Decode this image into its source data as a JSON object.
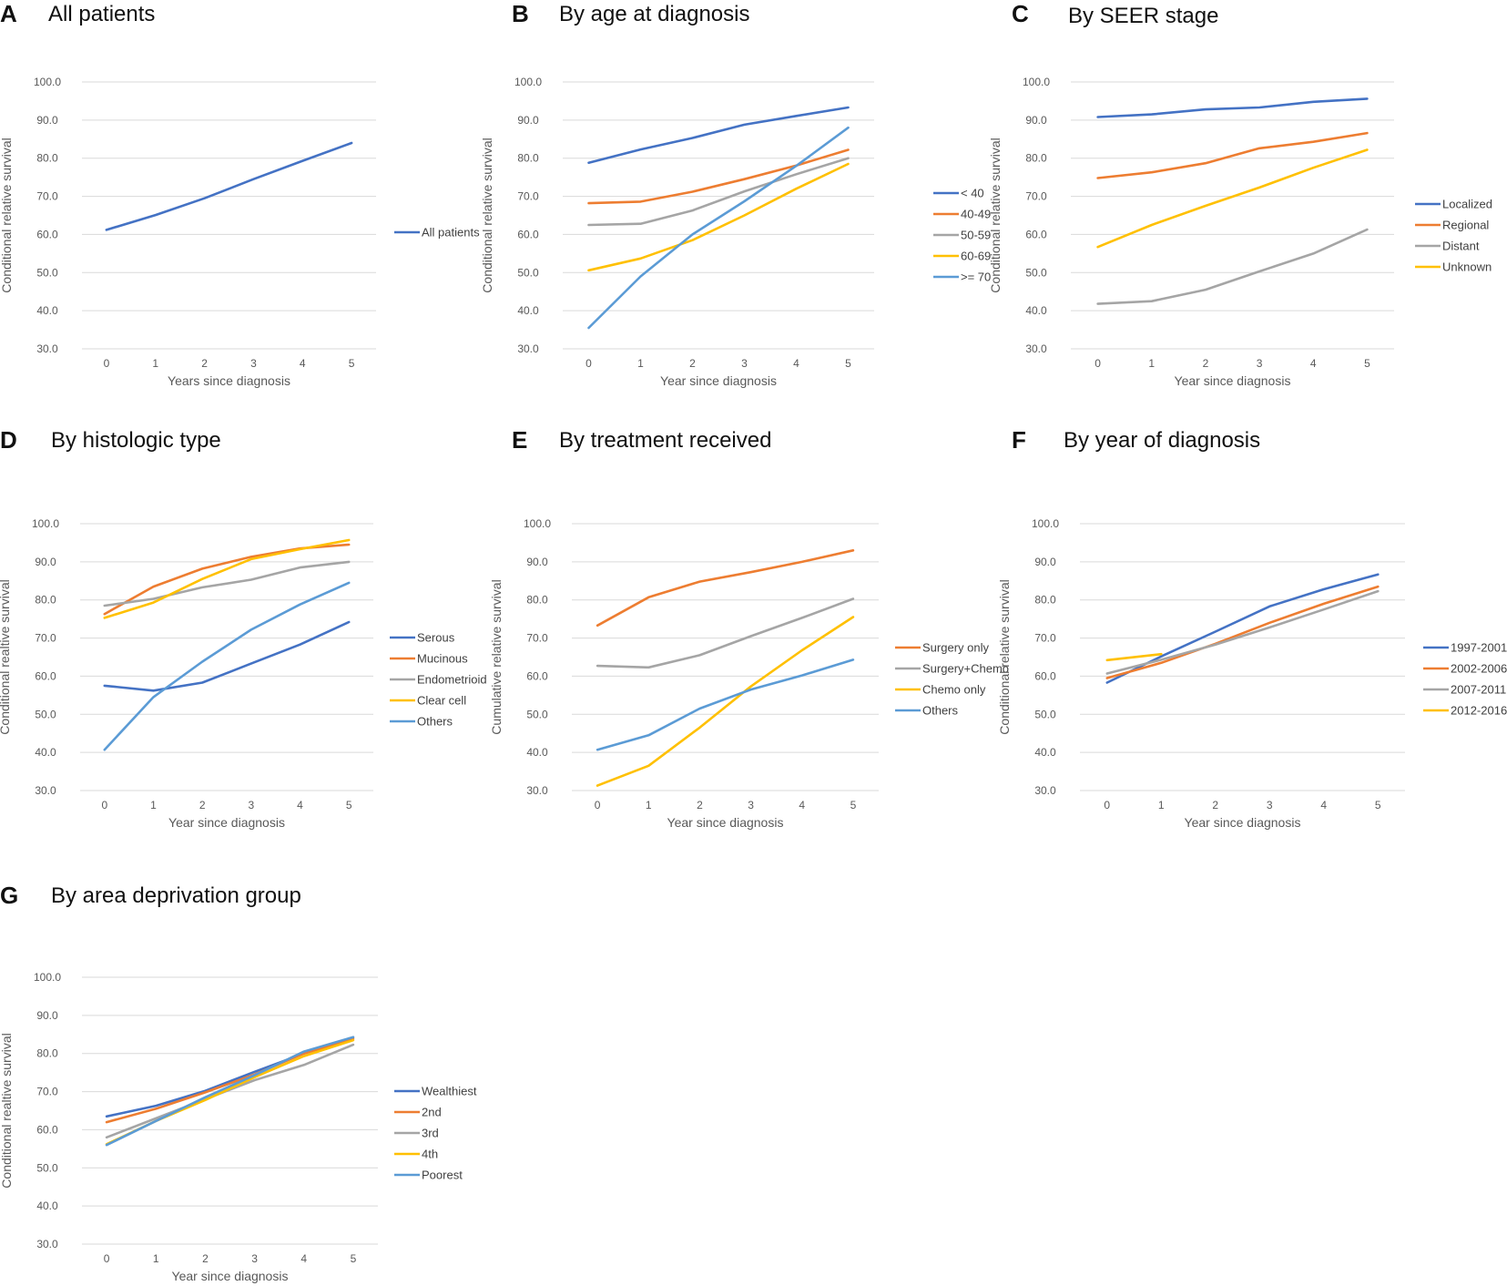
{
  "figure": {
    "background": "#ffffff"
  },
  "chart_data": [
    {
      "letter": "A",
      "title": "All patients",
      "type": "line",
      "xlabel": "Years since diagnosis",
      "ylabel": "Conditional relative survival",
      "x": [
        0,
        1,
        2,
        3,
        4,
        5
      ],
      "ylim": [
        30,
        100
      ],
      "yticks": [
        "100.0",
        "90.0",
        "80.0",
        "70.0",
        "60.0",
        "50.0",
        "40.0",
        "30.0"
      ],
      "series": [
        {
          "name": "All patients",
          "color": "#4472C4",
          "values": [
            61.2,
            65.1,
            69.5,
            74.5,
            79.3,
            84.0
          ]
        }
      ]
    },
    {
      "letter": "B",
      "title": "By age at diagnosis",
      "type": "line",
      "xlabel": "Year since diagnosis",
      "ylabel": "Conditional relative survival",
      "x": [
        0,
        1,
        2,
        3,
        4,
        5
      ],
      "ylim": [
        30,
        100
      ],
      "yticks": [
        "100.0",
        "90.0",
        "80.0",
        "70.0",
        "60.0",
        "50.0",
        "40.0",
        "30.0"
      ],
      "series": [
        {
          "name": "< 40",
          "color": "#4472C4",
          "values": [
            78.8,
            82.3,
            85.3,
            88.8,
            91.1,
            93.3
          ]
        },
        {
          "name": "40-49",
          "color": "#ED7D31",
          "values": [
            68.2,
            68.6,
            71.2,
            74.5,
            78.1,
            82.2
          ]
        },
        {
          "name": "50-59",
          "color": "#A5A5A5",
          "values": [
            62.5,
            62.8,
            66.3,
            71.3,
            75.8,
            80.0
          ]
        },
        {
          "name": "60-69",
          "color": "#FFC000",
          "values": [
            50.6,
            53.7,
            58.5,
            65.0,
            72.0,
            78.5
          ]
        },
        {
          "name": ">= 70",
          "color": "#5B9BD5",
          "values": [
            35.5,
            49.0,
            60.0,
            68.7,
            78.0,
            88.0
          ]
        }
      ]
    },
    {
      "letter": "C",
      "title": "By SEER stage",
      "type": "line",
      "xlabel": "Year since diagnosis",
      "ylabel": "Conditional relative survival",
      "x": [
        0,
        1,
        2,
        3,
        4,
        5
      ],
      "ylim": [
        30,
        100
      ],
      "yticks": [
        "100.0",
        "90.0",
        "80.0",
        "70.0",
        "60.0",
        "50.0",
        "40.0",
        "30.0"
      ],
      "series": [
        {
          "name": "Localized",
          "color": "#4472C4",
          "values": [
            90.8,
            91.5,
            92.8,
            93.3,
            94.8,
            95.6
          ]
        },
        {
          "name": "Regional",
          "color": "#ED7D31",
          "values": [
            74.8,
            76.3,
            78.7,
            82.6,
            84.3,
            86.6
          ]
        },
        {
          "name": "Distant",
          "color": "#A5A5A5",
          "values": [
            41.8,
            42.5,
            45.5,
            50.3,
            55.0,
            61.3
          ]
        },
        {
          "name": "Unknown",
          "color": "#FFC000",
          "values": [
            56.7,
            62.5,
            67.5,
            72.3,
            77.5,
            82.2
          ]
        }
      ]
    },
    {
      "letter": "D",
      "title": "By histologic type",
      "type": "line",
      "xlabel": "Year since diagnosis",
      "ylabel": "Conditional realtive survival",
      "x": [
        0,
        1,
        2,
        3,
        4,
        5
      ],
      "ylim": [
        30,
        100
      ],
      "yticks": [
        "100.0",
        "90.0",
        "80.0",
        "70.0",
        "60.0",
        "50.0",
        "40.0",
        "30.0"
      ],
      "series": [
        {
          "name": "Serous",
          "color": "#4472C4",
          "values": [
            57.5,
            56.2,
            58.3,
            63.3,
            68.3,
            74.2
          ]
        },
        {
          "name": "Mucinous",
          "color": "#ED7D31",
          "values": [
            76.3,
            83.5,
            88.2,
            91.3,
            93.5,
            94.5
          ]
        },
        {
          "name": "Endometrioid",
          "color": "#A5A5A5",
          "values": [
            78.5,
            80.3,
            83.3,
            85.3,
            88.5,
            90.0
          ]
        },
        {
          "name": "Clear cell",
          "color": "#FFC000",
          "values": [
            75.3,
            79.3,
            85.5,
            90.7,
            93.3,
            95.7
          ]
        },
        {
          "name": "Others",
          "color": "#5B9BD5",
          "values": [
            40.7,
            54.5,
            63.8,
            72.2,
            78.8,
            84.5
          ]
        }
      ]
    },
    {
      "letter": "E",
      "title": "By treatment received",
      "type": "line",
      "xlabel": "Year since diagnosis",
      "ylabel": "Cumulative relative survival",
      "x": [
        0,
        1,
        2,
        3,
        4,
        5
      ],
      "ylim": [
        30,
        100
      ],
      "yticks": [
        "100.0",
        "90.0",
        "80.0",
        "70.0",
        "60.0",
        "50.0",
        "40.0",
        "30.0"
      ],
      "series": [
        {
          "name": "Surgery only",
          "color": "#ED7D31",
          "values": [
            73.3,
            80.7,
            84.8,
            87.3,
            90.0,
            93.0
          ]
        },
        {
          "name": "Surgery+Chemo",
          "color": "#A5A5A5",
          "values": [
            62.7,
            62.3,
            65.5,
            70.5,
            75.3,
            80.3
          ]
        },
        {
          "name": "Chemo only",
          "color": "#FFC000",
          "values": [
            31.3,
            36.5,
            46.5,
            57.3,
            66.8,
            75.5
          ]
        },
        {
          "name": "Others",
          "color": "#5B9BD5",
          "values": [
            40.7,
            44.5,
            51.5,
            56.5,
            60.2,
            64.3
          ]
        }
      ]
    },
    {
      "letter": "F",
      "title": "By year of diagnosis",
      "type": "line",
      "xlabel": "Year since diagnosis",
      "ylabel": "Conditional relative survival",
      "x": [
        0,
        1,
        2,
        3,
        4,
        5
      ],
      "ylim": [
        30,
        100
      ],
      "yticks": [
        "100.0",
        "90.0",
        "80.0",
        "70.0",
        "60.0",
        "50.0",
        "40.0",
        "30.0"
      ],
      "series": [
        {
          "name": "1997-2001",
          "color": "#4472C4",
          "values": [
            58.3,
            65.2,
            71.7,
            78.3,
            82.8,
            86.7
          ]
        },
        {
          "name": "2002-2006",
          "color": "#ED7D31",
          "values": [
            59.5,
            63.5,
            68.5,
            74.0,
            79.0,
            83.5
          ]
        },
        {
          "name": "2007-2011",
          "color": "#A5A5A5",
          "values": [
            60.7,
            64.3,
            68.3,
            72.8,
            77.5,
            82.3
          ]
        },
        {
          "name": "2012-2016",
          "color": "#FFC000",
          "values": [
            64.2,
            65.8,
            null,
            null,
            null,
            null
          ]
        }
      ]
    },
    {
      "letter": "G",
      "title": "By area deprivation group",
      "type": "line",
      "xlabel": "Year since diagnosis",
      "ylabel": "Conditional realtive survival",
      "x": [
        0,
        1,
        2,
        3,
        4,
        5
      ],
      "ylim": [
        30,
        100
      ],
      "yticks": [
        "100.0",
        "90.0",
        "80.0",
        "70.0",
        "60.0",
        "50.0",
        "40.0",
        "30.0"
      ],
      "series": [
        {
          "name": "Wealthiest",
          "color": "#4472C4",
          "values": [
            63.5,
            66.3,
            70.2,
            75.2,
            80.0,
            84.2
          ]
        },
        {
          "name": "2nd",
          "color": "#ED7D31",
          "values": [
            62.0,
            65.5,
            69.8,
            74.5,
            80.0,
            83.8
          ]
        },
        {
          "name": "3rd",
          "color": "#A5A5A5",
          "values": [
            58.0,
            63.0,
            68.0,
            73.0,
            77.0,
            82.3
          ]
        },
        {
          "name": "4th",
          "color": "#FFC000",
          "values": [
            56.2,
            62.3,
            67.8,
            73.8,
            79.3,
            83.5
          ]
        },
        {
          "name": "Poorest",
          "color": "#5B9BD5",
          "values": [
            56.0,
            62.3,
            68.5,
            74.3,
            80.5,
            84.3
          ]
        }
      ]
    }
  ]
}
